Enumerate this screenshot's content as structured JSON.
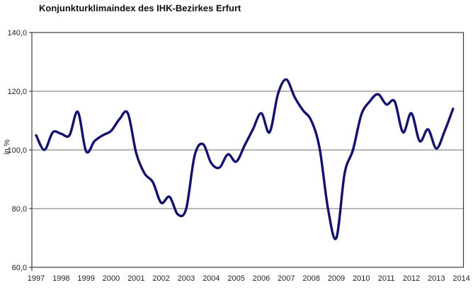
{
  "page": {
    "background": "#ffffff"
  },
  "chart_data": {
    "type": "line",
    "title": "Konjunkturklimaindex des IHK-Bezirkes Erfurt",
    "xlabel": "",
    "ylabel": "in %",
    "ylim": [
      60,
      140
    ],
    "grid": "horizontal",
    "legend": "none",
    "line_color": "#12126e",
    "axis_color": "#3c3c3c",
    "gridline_color": "#6e6e6e",
    "yticks": [
      {
        "value": 60,
        "label": "60,0"
      },
      {
        "value": 80,
        "label": "80,0"
      },
      {
        "value": 100,
        "label": "100,0"
      },
      {
        "value": 120,
        "label": "120,0"
      },
      {
        "value": 140,
        "label": "140,0"
      }
    ],
    "x_tick_labels": [
      "1997",
      "1998",
      "1999",
      "2000",
      "2001",
      "2002",
      "2003",
      "2004",
      "2005",
      "2006",
      "2007",
      "2008",
      "2009",
      "2010",
      "2011",
      "2012",
      "2013",
      "2014"
    ],
    "x_start": 1997,
    "points_per_year": 3,
    "series": [
      {
        "name": "Konjunkturklimaindex",
        "values": [
          105,
          100,
          106,
          105.5,
          105,
          113,
          99.5,
          103,
          105,
          106.5,
          110.5,
          112.5,
          99,
          92,
          89,
          82,
          84,
          78,
          80,
          98,
          102,
          95.5,
          94,
          98.5,
          96,
          101.5,
          107,
          112.5,
          106,
          119,
          124,
          118,
          113.5,
          110,
          100.5,
          80,
          70,
          92,
          100,
          112,
          116.5,
          119,
          115.5,
          116.5,
          106,
          112.5,
          103,
          107,
          100.5,
          106.5,
          114
        ]
      }
    ]
  }
}
